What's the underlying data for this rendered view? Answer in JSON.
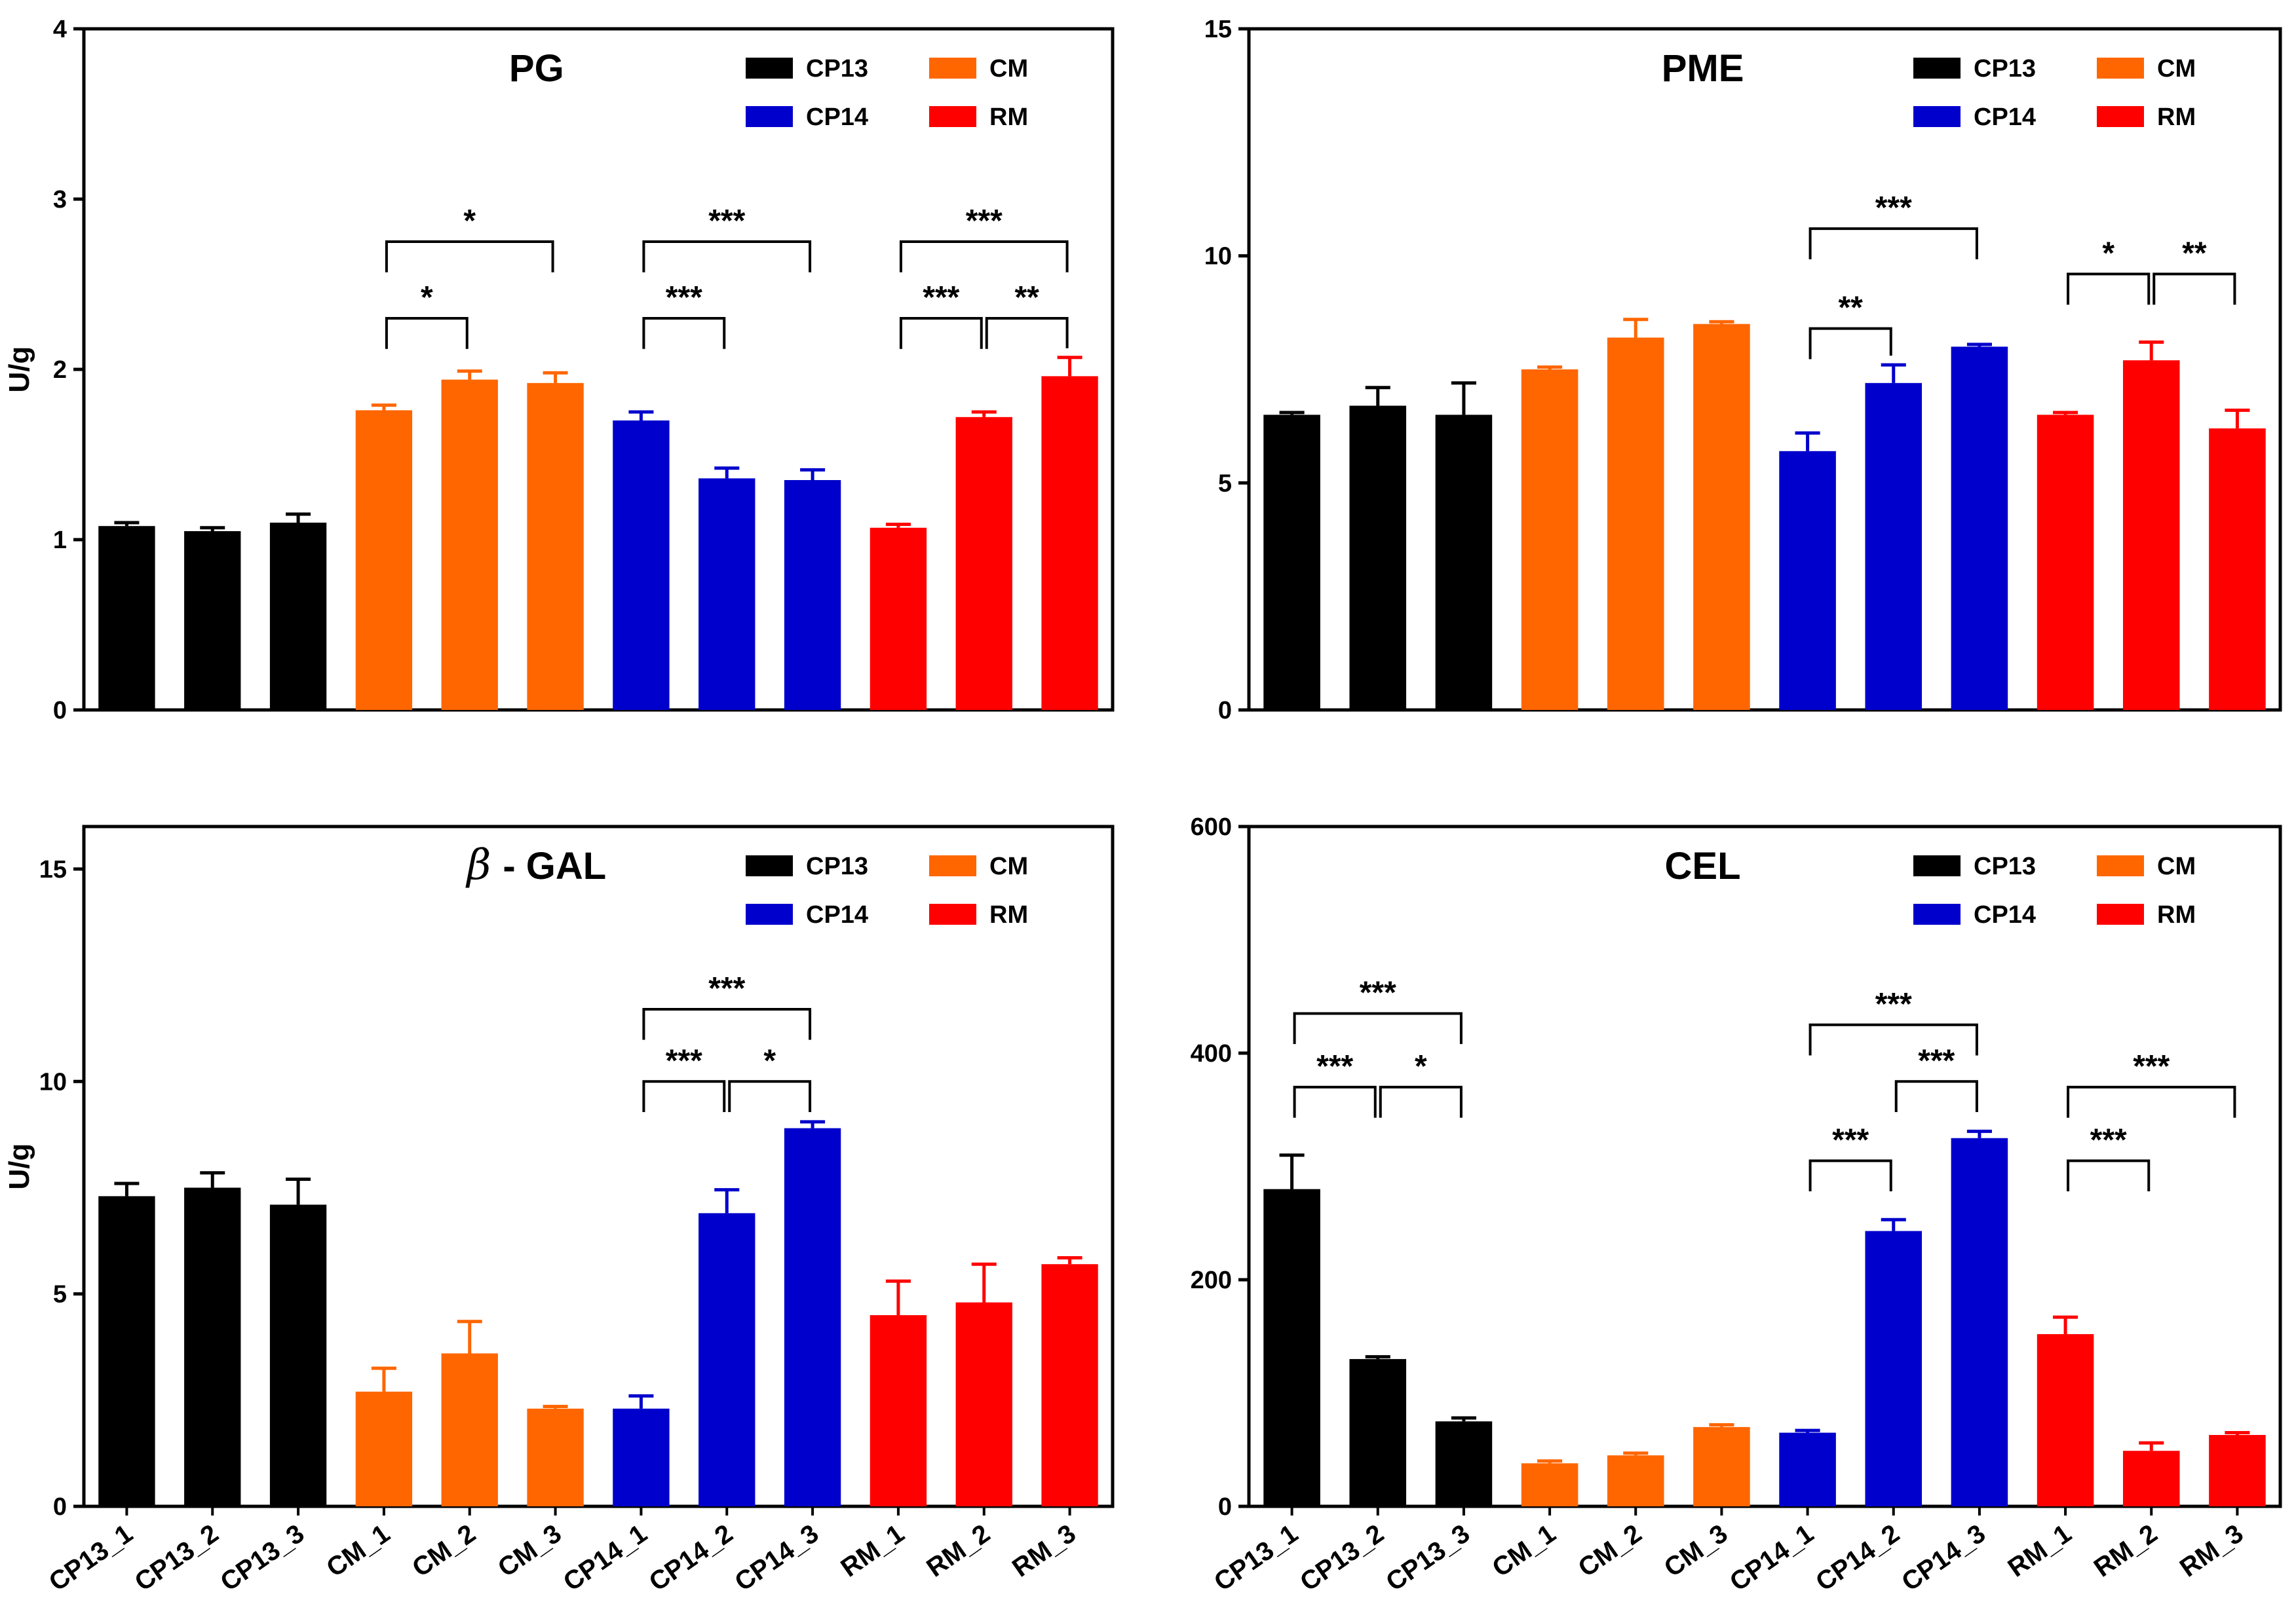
{
  "figure": {
    "y_axis_label": "U/g"
  },
  "colors": {
    "CP13": "#000000",
    "CM": "#ff6600",
    "CP14": "#0000cc",
    "RM": "#ff0000"
  },
  "chart_data": [
    {
      "id": "pg",
      "type": "bar",
      "title": "PG",
      "title_symbol": "",
      "ylabel": "U/g",
      "show_ylabel": true,
      "ylim": [
        0,
        4
      ],
      "yticks": [
        0,
        1,
        2,
        3,
        4
      ],
      "show_categories": false,
      "legend": {
        "placement": "top-right",
        "entries": [
          {
            "name": "CP13",
            "color": "#000000"
          },
          {
            "name": "CM",
            "color": "#ff6600"
          },
          {
            "name": "CP14",
            "color": "#0000cc"
          },
          {
            "name": "RM",
            "color": "#ff0000"
          }
        ]
      },
      "categories": [
        "CP13_1",
        "CP13_2",
        "CP13_3",
        "CM_1",
        "CM_2",
        "CM_3",
        "CP14_1",
        "CP14_2",
        "CP14_3",
        "RM_1",
        "RM_2",
        "RM_3"
      ],
      "values": [
        1.08,
        1.05,
        1.1,
        1.76,
        1.94,
        1.92,
        1.7,
        1.36,
        1.35,
        1.07,
        1.72,
        1.96
      ],
      "errors": [
        0.02,
        0.02,
        0.05,
        0.03,
        0.05,
        0.06,
        0.05,
        0.06,
        0.06,
        0.02,
        0.03,
        0.11
      ],
      "bar_colors": [
        "#000000",
        "#000000",
        "#000000",
        "#ff6600",
        "#ff6600",
        "#ff6600",
        "#0000cc",
        "#0000cc",
        "#0000cc",
        "#ff0000",
        "#ff0000",
        "#ff0000"
      ],
      "significance": [
        {
          "from": 3,
          "to": 4,
          "level": 2.3,
          "label": "*"
        },
        {
          "from": 3,
          "to": 5,
          "level": 2.75,
          "label": "*"
        },
        {
          "from": 6,
          "to": 7,
          "level": 2.3,
          "label": "***"
        },
        {
          "from": 6,
          "to": 8,
          "level": 2.75,
          "label": "***"
        },
        {
          "from": 9,
          "to": 10,
          "level": 2.3,
          "label": "***"
        },
        {
          "from": 10,
          "to": 11,
          "level": 2.3,
          "label": "**"
        },
        {
          "from": 9,
          "to": 11,
          "level": 2.75,
          "label": "***"
        }
      ]
    },
    {
      "id": "pme",
      "type": "bar",
      "title": "PME",
      "title_symbol": "",
      "ylabel": "",
      "show_ylabel": false,
      "ylim": [
        0,
        15
      ],
      "yticks": [
        0,
        5,
        10,
        15
      ],
      "show_categories": false,
      "legend": {
        "placement": "top-right",
        "entries": [
          {
            "name": "CP13",
            "color": "#000000"
          },
          {
            "name": "CM",
            "color": "#ff6600"
          },
          {
            "name": "CP14",
            "color": "#0000cc"
          },
          {
            "name": "RM",
            "color": "#ff0000"
          }
        ]
      },
      "categories": [
        "CP13_1",
        "CP13_2",
        "CP13_3",
        "CM_1",
        "CM_2",
        "CM_3",
        "CP14_1",
        "CP14_2",
        "CP14_3",
        "RM_1",
        "RM_2",
        "RM_3"
      ],
      "values": [
        6.5,
        6.7,
        6.5,
        7.5,
        8.2,
        8.5,
        5.7,
        7.2,
        8.0,
        6.5,
        7.7,
        6.2
      ],
      "errors": [
        0.05,
        0.4,
        0.7,
        0.05,
        0.4,
        0.05,
        0.4,
        0.4,
        0.05,
        0.05,
        0.4,
        0.4
      ],
      "bar_colors": [
        "#000000",
        "#000000",
        "#000000",
        "#ff6600",
        "#ff6600",
        "#ff6600",
        "#0000cc",
        "#0000cc",
        "#0000cc",
        "#ff0000",
        "#ff0000",
        "#ff0000"
      ],
      "significance": [
        {
          "from": 6,
          "to": 7,
          "level": 8.4,
          "label": "**"
        },
        {
          "from": 6,
          "to": 8,
          "level": 10.6,
          "label": "***"
        },
        {
          "from": 9,
          "to": 10,
          "level": 9.6,
          "label": "*"
        },
        {
          "from": 10,
          "to": 11,
          "level": 9.6,
          "label": "**"
        }
      ]
    },
    {
      "id": "bgal",
      "type": "bar",
      "title": "- GAL",
      "title_symbol": "β",
      "ylabel": "U/g",
      "show_ylabel": true,
      "ylim": [
        0,
        16
      ],
      "yticks": [
        0,
        5,
        10,
        15
      ],
      "show_categories": true,
      "legend": {
        "placement": "top-right",
        "entries": [
          {
            "name": "CP13",
            "color": "#000000"
          },
          {
            "name": "CM",
            "color": "#ff6600"
          },
          {
            "name": "CP14",
            "color": "#0000cc"
          },
          {
            "name": "RM",
            "color": "#ff0000"
          }
        ]
      },
      "categories": [
        "CP13_1",
        "CP13_2",
        "CP13_3",
        "CM_1",
        "CM_2",
        "CM_3",
        "CP14_1",
        "CP14_2",
        "CP14_3",
        "RM_1",
        "RM_2",
        "RM_3"
      ],
      "values": [
        7.3,
        7.5,
        7.1,
        2.7,
        3.6,
        2.3,
        2.3,
        6.9,
        8.9,
        4.5,
        4.8,
        5.7
      ],
      "errors": [
        0.3,
        0.35,
        0.6,
        0.55,
        0.75,
        0.05,
        0.3,
        0.55,
        0.15,
        0.8,
        0.9,
        0.15
      ],
      "bar_colors": [
        "#000000",
        "#000000",
        "#000000",
        "#ff6600",
        "#ff6600",
        "#ff6600",
        "#0000cc",
        "#0000cc",
        "#0000cc",
        "#ff0000",
        "#ff0000",
        "#ff0000"
      ],
      "significance": [
        {
          "from": 6,
          "to": 7,
          "level": 10.0,
          "label": "***"
        },
        {
          "from": 7,
          "to": 8,
          "level": 10.0,
          "label": "*"
        },
        {
          "from": 6,
          "to": 8,
          "level": 11.7,
          "label": "***"
        }
      ]
    },
    {
      "id": "cel",
      "type": "bar",
      "title": "CEL",
      "title_symbol": "",
      "ylabel": "",
      "show_ylabel": false,
      "ylim": [
        0,
        600
      ],
      "yticks": [
        0,
        200,
        400,
        600
      ],
      "show_categories": true,
      "legend": {
        "placement": "top-right",
        "entries": [
          {
            "name": "CP13",
            "color": "#000000"
          },
          {
            "name": "CM",
            "color": "#ff6600"
          },
          {
            "name": "CP14",
            "color": "#0000cc"
          },
          {
            "name": "RM",
            "color": "#ff0000"
          }
        ]
      },
      "categories": [
        "CP13_1",
        "CP13_2",
        "CP13_3",
        "CM_1",
        "CM_2",
        "CM_3",
        "CP14_1",
        "CP14_2",
        "CP14_3",
        "RM_1",
        "RM_2",
        "RM_3"
      ],
      "values": [
        280,
        130,
        75,
        38,
        45,
        70,
        65,
        243,
        325,
        152,
        49,
        63
      ],
      "errors": [
        30,
        2,
        3,
        2,
        2,
        2,
        2,
        10,
        6,
        15,
        7,
        2
      ],
      "bar_colors": [
        "#000000",
        "#000000",
        "#000000",
        "#ff6600",
        "#ff6600",
        "#ff6600",
        "#0000cc",
        "#0000cc",
        "#0000cc",
        "#ff0000",
        "#ff0000",
        "#ff0000"
      ],
      "significance": [
        {
          "from": 0,
          "to": 1,
          "level": 370,
          "label": "***"
        },
        {
          "from": 1,
          "to": 2,
          "level": 370,
          "label": "*"
        },
        {
          "from": 0,
          "to": 2,
          "level": 435,
          "label": "***"
        },
        {
          "from": 6,
          "to": 7,
          "level": 305,
          "label": "***"
        },
        {
          "from": 7,
          "to": 8,
          "level": 375,
          "label": "***"
        },
        {
          "from": 6,
          "to": 8,
          "level": 425,
          "label": "***"
        },
        {
          "from": 9,
          "to": 10,
          "level": 305,
          "label": "***"
        },
        {
          "from": 9,
          "to": 11,
          "level": 370,
          "label": "***"
        }
      ]
    }
  ]
}
